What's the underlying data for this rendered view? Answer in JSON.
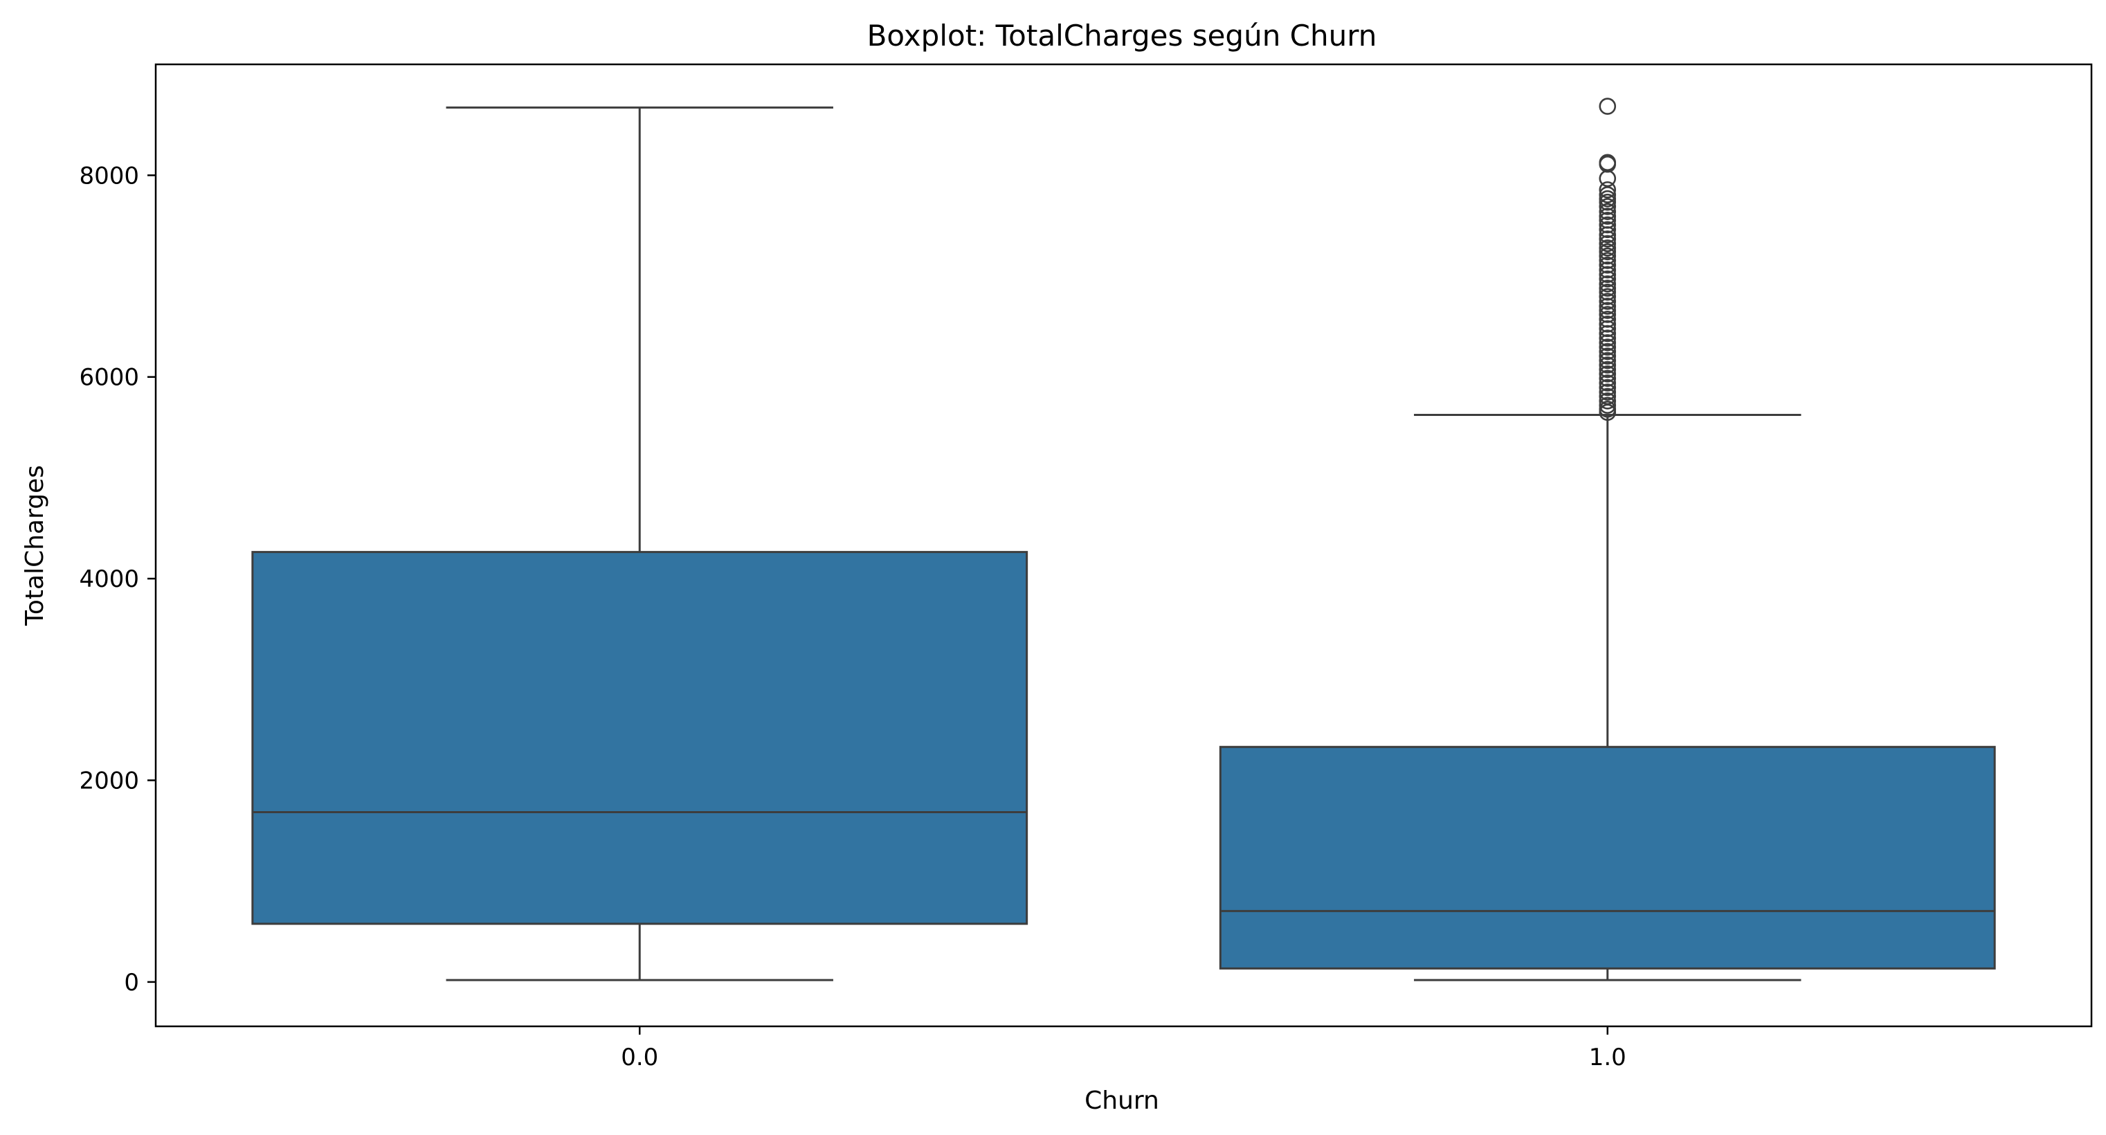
{
  "chart_data": {
    "type": "boxplot",
    "title": "Boxplot: TotalCharges según Churn",
    "xlabel": "Churn",
    "ylabel": "TotalCharges",
    "categories": [
      "0.0",
      "1.0"
    ],
    "ylim": [
      -440,
      9100
    ],
    "yticks": [
      0,
      2000,
      4000,
      6000,
      8000
    ],
    "ytick_labels": [
      "0",
      "2000",
      "4000",
      "6000",
      "8000"
    ],
    "grid": false,
    "legend": "none",
    "box_color": "#3274a1",
    "line_color": "#3d3d3d",
    "boxes": [
      {
        "category": "0.0",
        "whisker_low": 18.8,
        "q1": 577,
        "median": 1684,
        "q3": 4264,
        "whisker_high": 8672,
        "outliers": []
      },
      {
        "category": "1.0",
        "whisker_low": 19,
        "q1": 134,
        "median": 704,
        "q3": 2331,
        "whisker_high": 5624,
        "outliers": [
          8684,
          8127,
          8110,
          7968,
          7856,
          7807,
          7767,
          7733,
          7690,
          7640,
          7594,
          7554,
          7508,
          7461,
          7410,
          7368,
          7323,
          7279,
          7241,
          7199,
          7155,
          7109,
          7061,
          7016,
          6972,
          6923,
          6880,
          6841,
          6797,
          6750,
          6702,
          6660,
          6619,
          6572,
          6524,
          6479,
          6431,
          6385,
          6340,
          6296,
          6252,
          6207,
          6163,
          6118,
          6074,
          6030,
          5986,
          5940,
          5895,
          5850,
          5807,
          5762,
          5719,
          5680,
          5649
        ]
      }
    ]
  }
}
